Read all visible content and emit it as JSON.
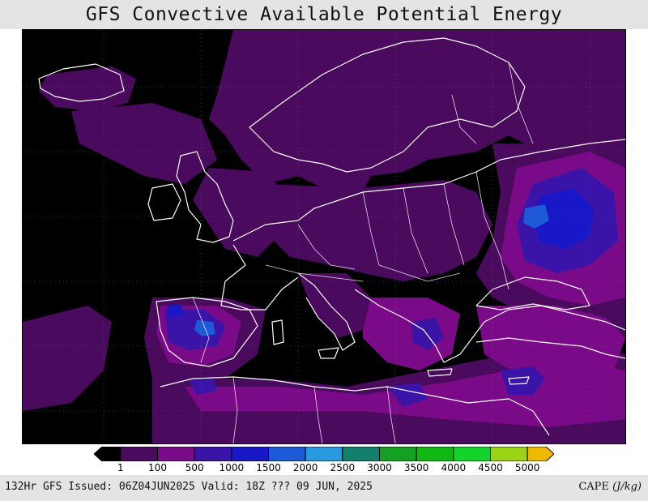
{
  "title": "GFS Convective Available Potential Energy",
  "colorbar": {
    "bins": [
      {
        "color": "#000000"
      },
      {
        "color": "#4a0a5e"
      },
      {
        "color": "#7b0a88"
      },
      {
        "color": "#3a14a8"
      },
      {
        "color": "#1818c8"
      },
      {
        "color": "#1c5ad8"
      },
      {
        "color": "#2a9ae0"
      },
      {
        "color": "#12806a"
      },
      {
        "color": "#14a020"
      },
      {
        "color": "#10b814"
      },
      {
        "color": "#12d42a"
      },
      {
        "color": "#9ad414"
      },
      {
        "color": "#f0b800"
      }
    ],
    "tick_labels": [
      "1",
      "100",
      "500",
      "1000",
      "1500",
      "2000",
      "2500",
      "3000",
      "3500",
      "4000",
      "4500",
      "5000"
    ]
  },
  "footer": {
    "run_info": "132Hr GFS Issued: 06Z04JUN2025 Valid: 18Z ??? 09 JUN, 2025",
    "variable": "CAPE",
    "unit": "(J/kg)"
  }
}
